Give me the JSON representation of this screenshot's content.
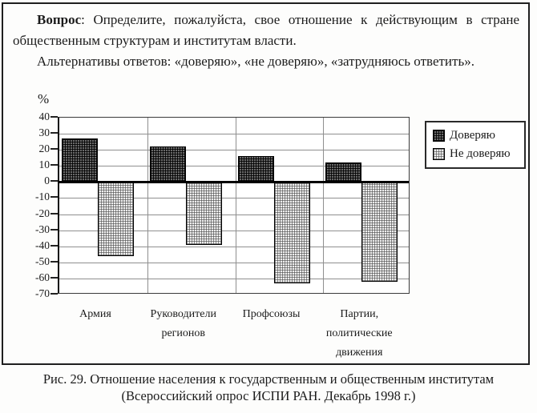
{
  "question": {
    "lead": "Вопрос",
    "p1_rest": ": Определите, пожалуйста, свое отношение к действующим в стране общественным структурам и институтам власти.",
    "p2": "Альтернативы ответов: «доверяю»,  «не доверяю», «затрудняюсь ответить»."
  },
  "chart_data": {
    "type": "bar",
    "title": "",
    "xlabel": "",
    "ylabel": "%",
    "ylim": [
      -70,
      40
    ],
    "ytick_step": 10,
    "grid": true,
    "legend_position": "right",
    "categories": [
      "Армия",
      "Руководители регионов",
      "Профсоюзы",
      "Партии, политические движения"
    ],
    "series": [
      {
        "name": "Доверяю",
        "values": [
          27,
          22,
          16,
          12
        ]
      },
      {
        "name": "Не доверяю",
        "values": [
          -46,
          -39,
          -63,
          -62
        ]
      }
    ],
    "colors": {
      "trust_bar": "#3f3f3f",
      "distrust_bar": "#d9d9d9",
      "grid": "#8f8f8f"
    }
  },
  "caption": {
    "line1": "Рис. 29. Отношение населения к государственным и общественным институтам",
    "line2": "(Всероссийский опрос ИСПИ РАН. Декабрь 1998 г.)"
  }
}
